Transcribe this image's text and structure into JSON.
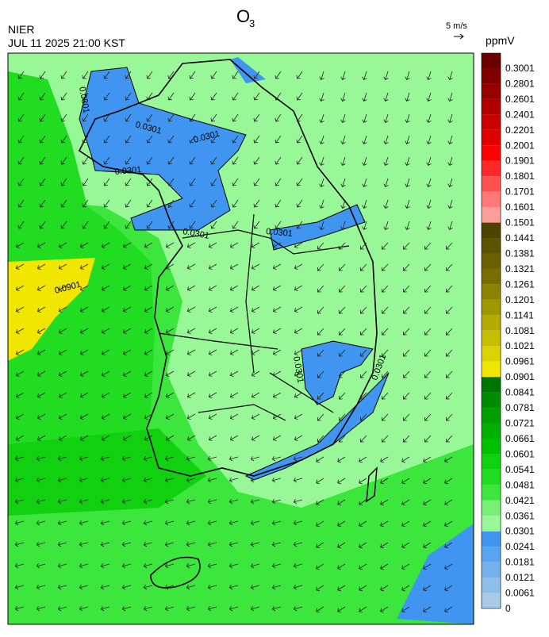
{
  "header": {
    "title": "O",
    "title_subscript": "3",
    "agency": "NIER",
    "datetime": "JUL 11 2025 21:00 KST",
    "wind_scale": "5 m/s",
    "unit": "ppmV"
  },
  "colorbar": {
    "labels": [
      0,
      0.0061,
      0.0121,
      0.0181,
      0.0241,
      0.0301,
      0.0361,
      0.0421,
      0.0481,
      0.0541,
      0.0601,
      0.0661,
      0.0721,
      0.0781,
      0.0841,
      0.0901,
      0.0961,
      0.1021,
      0.1081,
      0.1141,
      0.1201,
      0.1261,
      0.1321,
      0.1381,
      0.1441,
      0.1501,
      0.1601,
      0.1701,
      0.1801,
      0.1901,
      0.2001,
      0.2201,
      0.2401,
      0.2601,
      0.2801,
      0.3001
    ],
    "colors": [
      "#a8cce8",
      "#8ebfe8",
      "#74b1ec",
      "#5aa3ee",
      "#3f95f0",
      "#98f898",
      "#78f078",
      "#3ce63c",
      "#22dc22",
      "#10d010",
      "#00c000",
      "#00b000",
      "#00a000",
      "#008c00",
      "#007400",
      "#f0e600",
      "#dcd200",
      "#c8be00",
      "#b4aa00",
      "#a09600",
      "#8c8200",
      "#786e00",
      "#6a6000",
      "#5c5200",
      "#4e4400",
      "#ff9c9c",
      "#ff7878",
      "#ff5050",
      "#ff2828",
      "#ff0000",
      "#e00000",
      "#c80000",
      "#b00000",
      "#980000",
      "#800000",
      "#6a0000"
    ]
  },
  "contour_labels": [
    "0.0301",
    "0.0301",
    "0.0301",
    "0.0301",
    "0.0301",
    "0.0301",
    "0.0301",
    "0.0301",
    "0.0901"
  ]
}
